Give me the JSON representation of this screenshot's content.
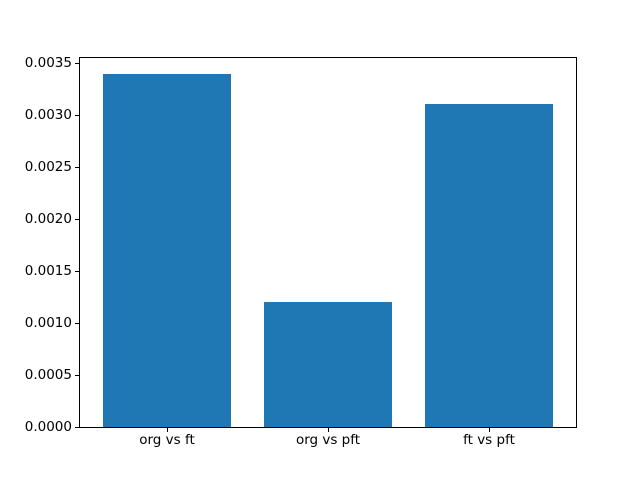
{
  "figure": {
    "background": "#ffffff",
    "axis_color": "#000000",
    "tick_label_color": "#000000"
  },
  "chart_data": {
    "type": "bar",
    "title": "",
    "xlabel": "",
    "ylabel": "",
    "categories": [
      "org vs ft",
      "org vs pft",
      "ft vs pft"
    ],
    "values": [
      0.0034,
      0.0012,
      0.00311
    ],
    "bar_color": "#1f77b4",
    "bar_width": 0.8,
    "xlim": [
      -0.54,
      2.54
    ],
    "ylim": [
      0,
      0.003552
    ],
    "ytick_values": [
      0.0,
      0.0005,
      0.001,
      0.0015,
      0.002,
      0.0025,
      0.003,
      0.0035
    ],
    "ytick_labels": [
      "0.0000",
      "0.0005",
      "0.0010",
      "0.0015",
      "0.0020",
      "0.0025",
      "0.0030",
      "0.0035"
    ],
    "grid": false,
    "legend": "none"
  }
}
